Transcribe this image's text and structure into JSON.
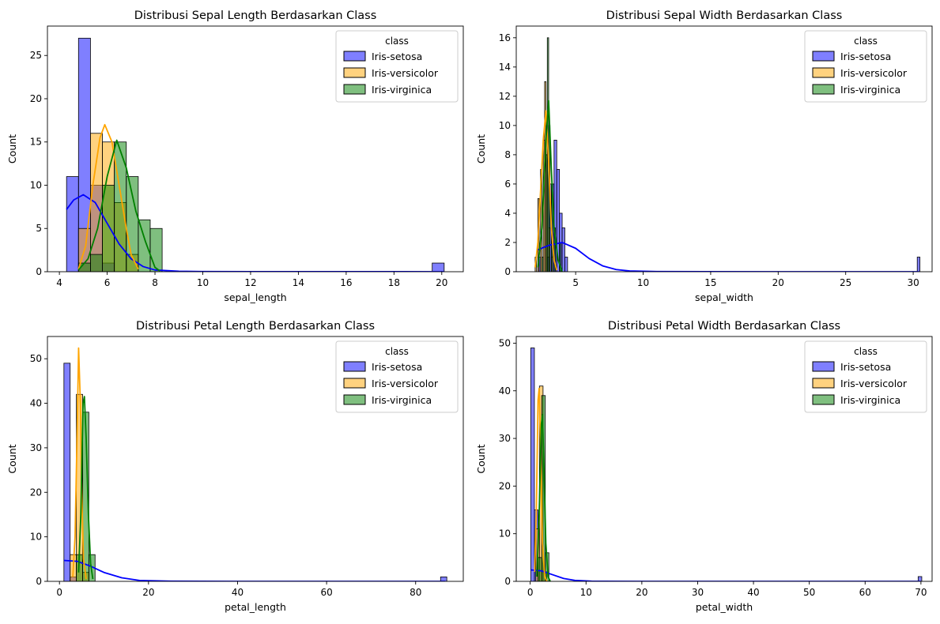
{
  "legend": {
    "title": "class",
    "entries": [
      {
        "label": "Iris-setosa",
        "color": "#0000ff"
      },
      {
        "label": "Iris-versicolor",
        "color": "#ffa500"
      },
      {
        "label": "Iris-virginica",
        "color": "#008000"
      }
    ]
  },
  "chart_data": [
    {
      "type": "bar",
      "title": "Distribusi Sepal Length Berdasarkan Class",
      "xlabel": "sepal_length",
      "ylabel": "Count",
      "xlim": [
        3.5,
        20.9
      ],
      "ylim": [
        0,
        28.4
      ],
      "xticks": [
        4,
        6,
        8,
        10,
        12,
        14,
        16,
        18,
        20
      ],
      "xtick_labels": [
        "4",
        "6",
        "8",
        "10",
        "12",
        "14",
        "16",
        "18",
        "20"
      ],
      "yticks": [
        0,
        5,
        10,
        15,
        20,
        25
      ],
      "ytick_labels": [
        "0",
        "5",
        "10",
        "15",
        "20",
        "25"
      ],
      "legend_position": "top-right",
      "grid": false,
      "series": [
        {
          "name": "Iris-setosa",
          "bin_width": 0.5,
          "bins": [
            [
              4.3,
              11
            ],
            [
              4.8,
              27
            ],
            [
              5.3,
              10
            ],
            [
              5.8,
              1
            ],
            [
              19.6,
              1
            ]
          ],
          "kde": [
            [
              4.3,
              7.2
            ],
            [
              4.6,
              8.3
            ],
            [
              5.0,
              8.9
            ],
            [
              5.5,
              8.0
            ],
            [
              6.0,
              5.6
            ],
            [
              6.5,
              3.2
            ],
            [
              7.0,
              1.5
            ],
            [
              7.5,
              0.6
            ],
            [
              8.0,
              0.2
            ],
            [
              9.0,
              0.05
            ],
            [
              10.0,
              0.02
            ],
            [
              12,
              0.01
            ],
            [
              16,
              0.01
            ],
            [
              20.1,
              0.0
            ]
          ]
        },
        {
          "name": "Iris-versicolor",
          "bin_width": 0.5,
          "bins": [
            [
              4.8,
              5
            ],
            [
              5.3,
              16
            ],
            [
              5.8,
              15
            ],
            [
              6.3,
              8
            ],
            [
              6.8,
              2
            ]
          ],
          "kde": [
            [
              4.8,
              0.3
            ],
            [
              5.1,
              3.0
            ],
            [
              5.4,
              10.0
            ],
            [
              5.7,
              15.5
            ],
            [
              5.9,
              17.0
            ],
            [
              6.2,
              15.0
            ],
            [
              6.5,
              10.0
            ],
            [
              6.8,
              5.0
            ],
            [
              7.0,
              2.0
            ],
            [
              7.3,
              0.3
            ]
          ]
        },
        {
          "name": "Iris-virginica",
          "bin_width": 0.5,
          "bins": [
            [
              4.8,
              1
            ],
            [
              5.3,
              2
            ],
            [
              5.8,
              10
            ],
            [
              6.3,
              15
            ],
            [
              6.8,
              11
            ],
            [
              7.3,
              6
            ],
            [
              7.8,
              5
            ]
          ],
          "kde": [
            [
              4.8,
              0.2
            ],
            [
              5.2,
              1.5
            ],
            [
              5.6,
              5.0
            ],
            [
              6.0,
              11.0
            ],
            [
              6.4,
              15.2
            ],
            [
              6.8,
              12.0
            ],
            [
              7.2,
              7.0
            ],
            [
              7.6,
              3.5
            ],
            [
              8.0,
              0.5
            ],
            [
              8.2,
              0.1
            ]
          ]
        }
      ]
    },
    {
      "type": "bar",
      "title": "Distribusi Sepal Width Berdasarkan Class",
      "xlabel": "sepal_width",
      "ylabel": "Count",
      "xlim": [
        0.6,
        31.4
      ],
      "ylim": [
        0,
        16.8
      ],
      "xticks": [
        5,
        10,
        15,
        20,
        25,
        30
      ],
      "xtick_labels": [
        "5",
        "10",
        "15",
        "20",
        "25",
        "30"
      ],
      "yticks": [
        0,
        2,
        4,
        6,
        8,
        10,
        12,
        14,
        16
      ],
      "ytick_labels": [
        "0",
        "2",
        "4",
        "6",
        "8",
        "10",
        "12",
        "14",
        "16"
      ],
      "legend_position": "top-right",
      "grid": false,
      "series": [
        {
          "name": "Iris-setosa",
          "bin_width": 0.2,
          "bins": [
            [
              2.2,
              1
            ],
            [
              2.9,
              1
            ],
            [
              3.0,
              6
            ],
            [
              3.2,
              6
            ],
            [
              3.4,
              9
            ],
            [
              3.6,
              7
            ],
            [
              3.8,
              4
            ],
            [
              4.0,
              3
            ],
            [
              4.2,
              1
            ],
            [
              30.3,
              1
            ]
          ],
          "kde": [
            [
              2.2,
              1.5
            ],
            [
              3.0,
              1.8
            ],
            [
              4.0,
              2.0
            ],
            [
              5.0,
              1.6
            ],
            [
              6.0,
              0.9
            ],
            [
              7.0,
              0.4
            ],
            [
              8.0,
              0.15
            ],
            [
              9.0,
              0.05
            ],
            [
              11.0,
              0.01
            ],
            [
              20.0,
              0.0
            ],
            [
              30.4,
              0.0
            ]
          ]
        },
        {
          "name": "Iris-versicolor",
          "bin_width": 0.1,
          "bins": [
            [
              2.0,
              1
            ],
            [
              2.2,
              5
            ],
            [
              2.4,
              7
            ],
            [
              2.6,
              9
            ],
            [
              2.7,
              13
            ],
            [
              2.8,
              10
            ],
            [
              3.0,
              3
            ],
            [
              3.2,
              1
            ]
          ],
          "kde": [
            [
              2.0,
              0.3
            ],
            [
              2.2,
              2.0
            ],
            [
              2.4,
              5.5
            ],
            [
              2.6,
              9.0
            ],
            [
              2.8,
              11.0
            ],
            [
              3.0,
              7.5
            ],
            [
              3.2,
              3.0
            ],
            [
              3.4,
              0.8
            ],
            [
              3.6,
              0.1
            ]
          ]
        },
        {
          "name": "Iris-virginica",
          "bin_width": 0.1,
          "bins": [
            [
              2.5,
              1
            ],
            [
              2.8,
              8
            ],
            [
              2.9,
              16
            ],
            [
              3.0,
              10
            ],
            [
              3.2,
              6
            ],
            [
              3.4,
              3
            ],
            [
              3.8,
              2
            ]
          ],
          "kde": [
            [
              2.2,
              0.3
            ],
            [
              2.5,
              3.0
            ],
            [
              2.8,
              9.0
            ],
            [
              3.0,
              11.7
            ],
            [
              3.2,
              7.0
            ],
            [
              3.4,
              3.0
            ],
            [
              3.7,
              0.8
            ],
            [
              4.0,
              0.0
            ]
          ]
        }
      ]
    },
    {
      "type": "bar",
      "title": "Distribusi Petal Length Berdasarkan Class",
      "xlabel": "petal_length",
      "ylabel": "Count",
      "xlim": [
        -2.7,
        90.7
      ],
      "ylim": [
        0,
        55
      ],
      "xticks": [
        0,
        20,
        40,
        60,
        80
      ],
      "xtick_labels": [
        "0",
        "20",
        "40",
        "60",
        "80"
      ],
      "yticks": [
        0,
        10,
        20,
        30,
        40,
        50
      ],
      "ytick_labels": [
        "0",
        "10",
        "20",
        "30",
        "40",
        "50"
      ],
      "legend_position": "top-right",
      "grid": false,
      "series": [
        {
          "name": "Iris-setosa",
          "bin_width": 1.4,
          "bins": [
            [
              1.0,
              49
            ],
            [
              2.4,
              1
            ],
            [
              85.6,
              1
            ]
          ],
          "kde": [
            [
              1.0,
              4.7
            ],
            [
              4.0,
              4.5
            ],
            [
              7.0,
              3.4
            ],
            [
              10.0,
              2.0
            ],
            [
              14.0,
              0.8
            ],
            [
              18.0,
              0.2
            ],
            [
              25.0,
              0.05
            ],
            [
              40.0,
              0.0
            ],
            [
              86.6,
              0.0
            ]
          ]
        },
        {
          "name": "Iris-versicolor",
          "bin_width": 1.4,
          "bins": [
            [
              2.4,
              6
            ],
            [
              3.8,
              42
            ],
            [
              5.2,
              2
            ]
          ],
          "kde": [
            [
              3.0,
              1.0
            ],
            [
              3.5,
              10.0
            ],
            [
              4.0,
              35.0
            ],
            [
              4.3,
              52.4
            ],
            [
              4.7,
              40.0
            ],
            [
              5.0,
              20.0
            ],
            [
              5.4,
              5.0
            ],
            [
              6.0,
              0.5
            ]
          ]
        },
        {
          "name": "Iris-virginica",
          "bin_width": 1.4,
          "bins": [
            [
              3.8,
              6
            ],
            [
              5.2,
              38
            ],
            [
              6.6,
              6
            ]
          ],
          "kde": [
            [
              4.3,
              2.0
            ],
            [
              4.8,
              15.0
            ],
            [
              5.3,
              40.0
            ],
            [
              5.6,
              41.5
            ],
            [
              6.0,
              32.0
            ],
            [
              6.5,
              15.0
            ],
            [
              7.0,
              4.0
            ],
            [
              7.5,
              0.5
            ]
          ]
        }
      ]
    },
    {
      "type": "bar",
      "title": "Distribusi Petal Width Berdasarkan Class",
      "xlabel": "petal_width",
      "ylabel": "Count",
      "xlim": [
        -2.5,
        72.0
      ],
      "ylim": [
        0,
        51.4
      ],
      "xticks": [
        0,
        10,
        20,
        30,
        40,
        50,
        60,
        70
      ],
      "xtick_labels": [
        "0",
        "10",
        "20",
        "30",
        "40",
        "50",
        "60",
        "70"
      ],
      "yticks": [
        0,
        10,
        20,
        30,
        40,
        50
      ],
      "ytick_labels": [
        "0",
        "10",
        "20",
        "30",
        "40",
        "50"
      ],
      "legend_position": "top-right",
      "grid": false,
      "series": [
        {
          "name": "Iris-setosa",
          "bin_width": 0.65,
          "bins": [
            [
              0.1,
              49
            ],
            [
              0.75,
              15
            ],
            [
              69.5,
              1
            ]
          ],
          "kde": [
            [
              0.1,
              2.4
            ],
            [
              2.0,
              2.2
            ],
            [
              4.0,
              1.4
            ],
            [
              6.0,
              0.6
            ],
            [
              8.0,
              0.2
            ],
            [
              11.0,
              0.03
            ],
            [
              20.0,
              0.0
            ],
            [
              69.9,
              0.0
            ]
          ]
        },
        {
          "name": "Iris-versicolor",
          "bin_width": 0.65,
          "bins": [
            [
              1.0,
              11
            ],
            [
              1.65,
              41
            ],
            [
              2.3,
              2
            ]
          ],
          "kde": [
            [
              0.8,
              2.0
            ],
            [
              1.1,
              15.0
            ],
            [
              1.4,
              38.0
            ],
            [
              1.6,
              40.5
            ],
            [
              1.9,
              25.0
            ],
            [
              2.2,
              8.0
            ],
            [
              2.6,
              1.0
            ],
            [
              3.0,
              0.0
            ]
          ]
        },
        {
          "name": "Iris-virginica",
          "bin_width": 0.65,
          "bins": [
            [
              1.4,
              5
            ],
            [
              2.05,
              39
            ],
            [
              2.7,
              6
            ]
          ],
          "kde": [
            [
              1.2,
              1.0
            ],
            [
              1.6,
              14.0
            ],
            [
              2.0,
              33.0
            ],
            [
              2.2,
              35.0
            ],
            [
              2.5,
              22.0
            ],
            [
              2.8,
              8.0
            ],
            [
              3.2,
              1.0
            ],
            [
              3.6,
              0.0
            ]
          ]
        }
      ]
    }
  ]
}
